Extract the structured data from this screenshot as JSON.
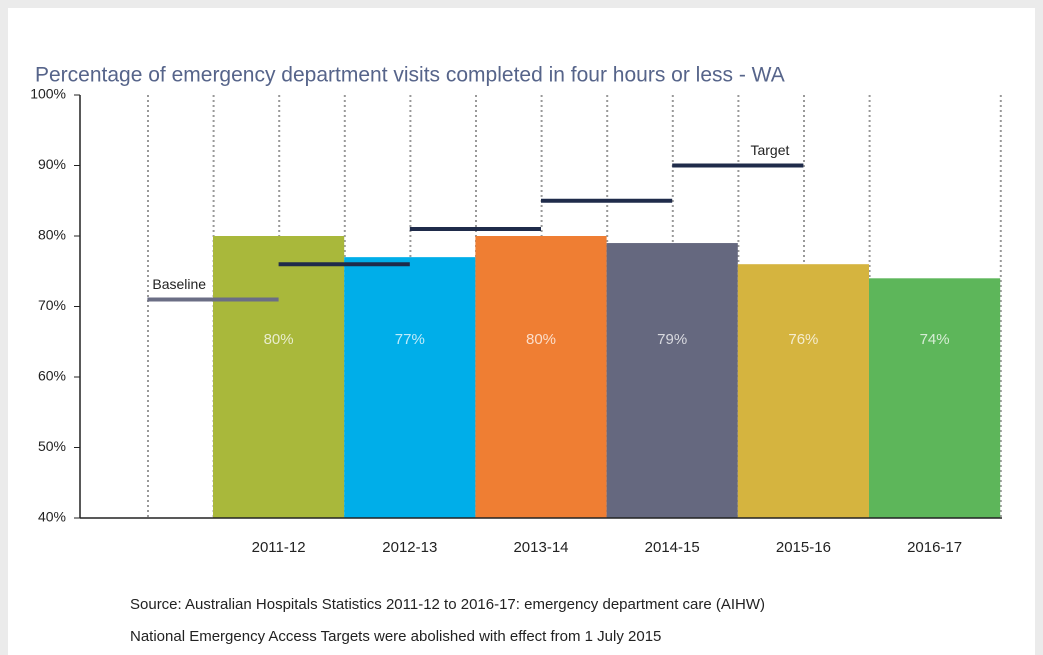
{
  "chart_data": {
    "type": "bar",
    "title": "Percentage of emergency department visits completed in four hours or less - WA",
    "categories": [
      "2011-12",
      "2012-13",
      "2013-14",
      "2014-15",
      "2015-16",
      "2016-17"
    ],
    "values": [
      80,
      77,
      80,
      79,
      76,
      74
    ],
    "value_labels": [
      "80%",
      "77%",
      "80%",
      "79%",
      "76%",
      "74%"
    ],
    "colors": [
      "#a9b83b",
      "#00aee9",
      "#ef7e33",
      "#65687f",
      "#d5b43f",
      "#5db65a"
    ],
    "ylim": [
      40,
      100
    ],
    "yticks": [
      {
        "value": 40,
        "label": "40%"
      },
      {
        "value": 50,
        "label": "50%"
      },
      {
        "value": 60,
        "label": "60%"
      },
      {
        "value": 70,
        "label": "70%"
      },
      {
        "value": 80,
        "label": "80%"
      },
      {
        "value": 90,
        "label": "90%"
      },
      {
        "value": 100,
        "label": "100%"
      }
    ],
    "baseline": {
      "label": "Baseline",
      "value": 71,
      "color": "#6b6e85"
    },
    "target": {
      "label": "Target",
      "values": [
        76,
        81,
        85,
        90,
        null,
        null
      ],
      "color": "#1f2b4a"
    },
    "notes": [
      "Source: Australian Hospitals Statistics 2011-12 to 2016-17: emergency department care (AIHW)",
      "National Emergency Access Targets were abolished with effect from 1 July 2015"
    ]
  }
}
